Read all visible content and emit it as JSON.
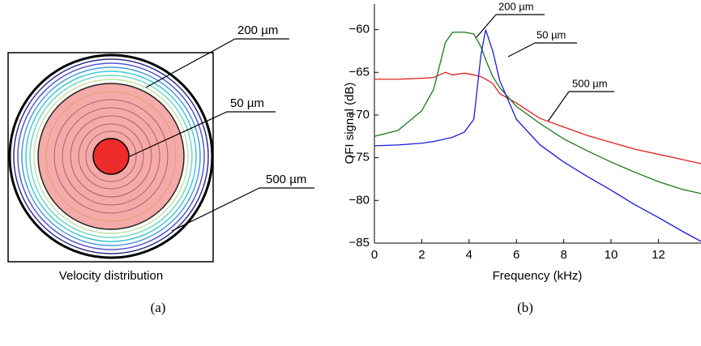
{
  "panel_a": {
    "labels": [
      "200 µm",
      "50 µm",
      "500 µm"
    ],
    "caption": "Velocity distribution"
  },
  "subfigure_labels": [
    "(a)",
    "(b)"
  ],
  "chart_data": {
    "type": "line",
    "ylabel": "OFI signal (dB)",
    "xlabel": "Frequency (kHz)",
    "x": [
      0,
      1,
      2,
      2.5,
      3,
      3.3,
      3.8,
      4.2,
      4.5,
      4.7,
      5,
      5.3,
      6,
      7,
      8,
      9,
      10,
      11,
      12,
      13,
      13.8
    ],
    "series": [
      {
        "name": "500 µm",
        "color": "#e02020",
        "values": [
          -65.8,
          -65.8,
          -65.7,
          -65.6,
          -65,
          -65.3,
          -65.1,
          -65.3,
          -65.5,
          -65.8,
          -66.3,
          -67.5,
          -68.6,
          -70.4,
          -71.4,
          -72.4,
          -73.2,
          -74,
          -74.6,
          -75.2,
          -75.7
        ]
      },
      {
        "name": "200 µm",
        "color": "#1a7a1a",
        "values": [
          -72.5,
          -71.8,
          -69.5,
          -67,
          -61.5,
          -60.3,
          -60.3,
          -60.5,
          -62,
          -63.5,
          -65.5,
          -66.8,
          -69,
          -71,
          -72.8,
          -74.2,
          -75.5,
          -76.7,
          -77.8,
          -78.7,
          -79.2
        ]
      },
      {
        "name": "50 µm",
        "color": "#1a1ae0",
        "values": [
          -73.6,
          -73.5,
          -73.3,
          -73.1,
          -72.8,
          -72.6,
          -72,
          -70.5,
          -63,
          -60,
          -62.5,
          -66,
          -70.5,
          -73.5,
          -75.5,
          -77.2,
          -78.8,
          -80.5,
          -82,
          -83.6,
          -84.8
        ]
      }
    ],
    "xlim": [
      0,
      13.8
    ],
    "ylim": [
      -85,
      -57
    ],
    "xticks": [
      0,
      2,
      4,
      6,
      8,
      10,
      12
    ],
    "yticks": [
      {
        "value": -85,
        "label": "−85"
      },
      {
        "value": -80,
        "label": "−80"
      },
      {
        "value": -75,
        "label": "−75"
      },
      {
        "value": -70,
        "label": "−70"
      },
      {
        "value": -65,
        "label": "−65"
      },
      {
        "value": -60,
        "label": "−60"
      }
    ]
  }
}
